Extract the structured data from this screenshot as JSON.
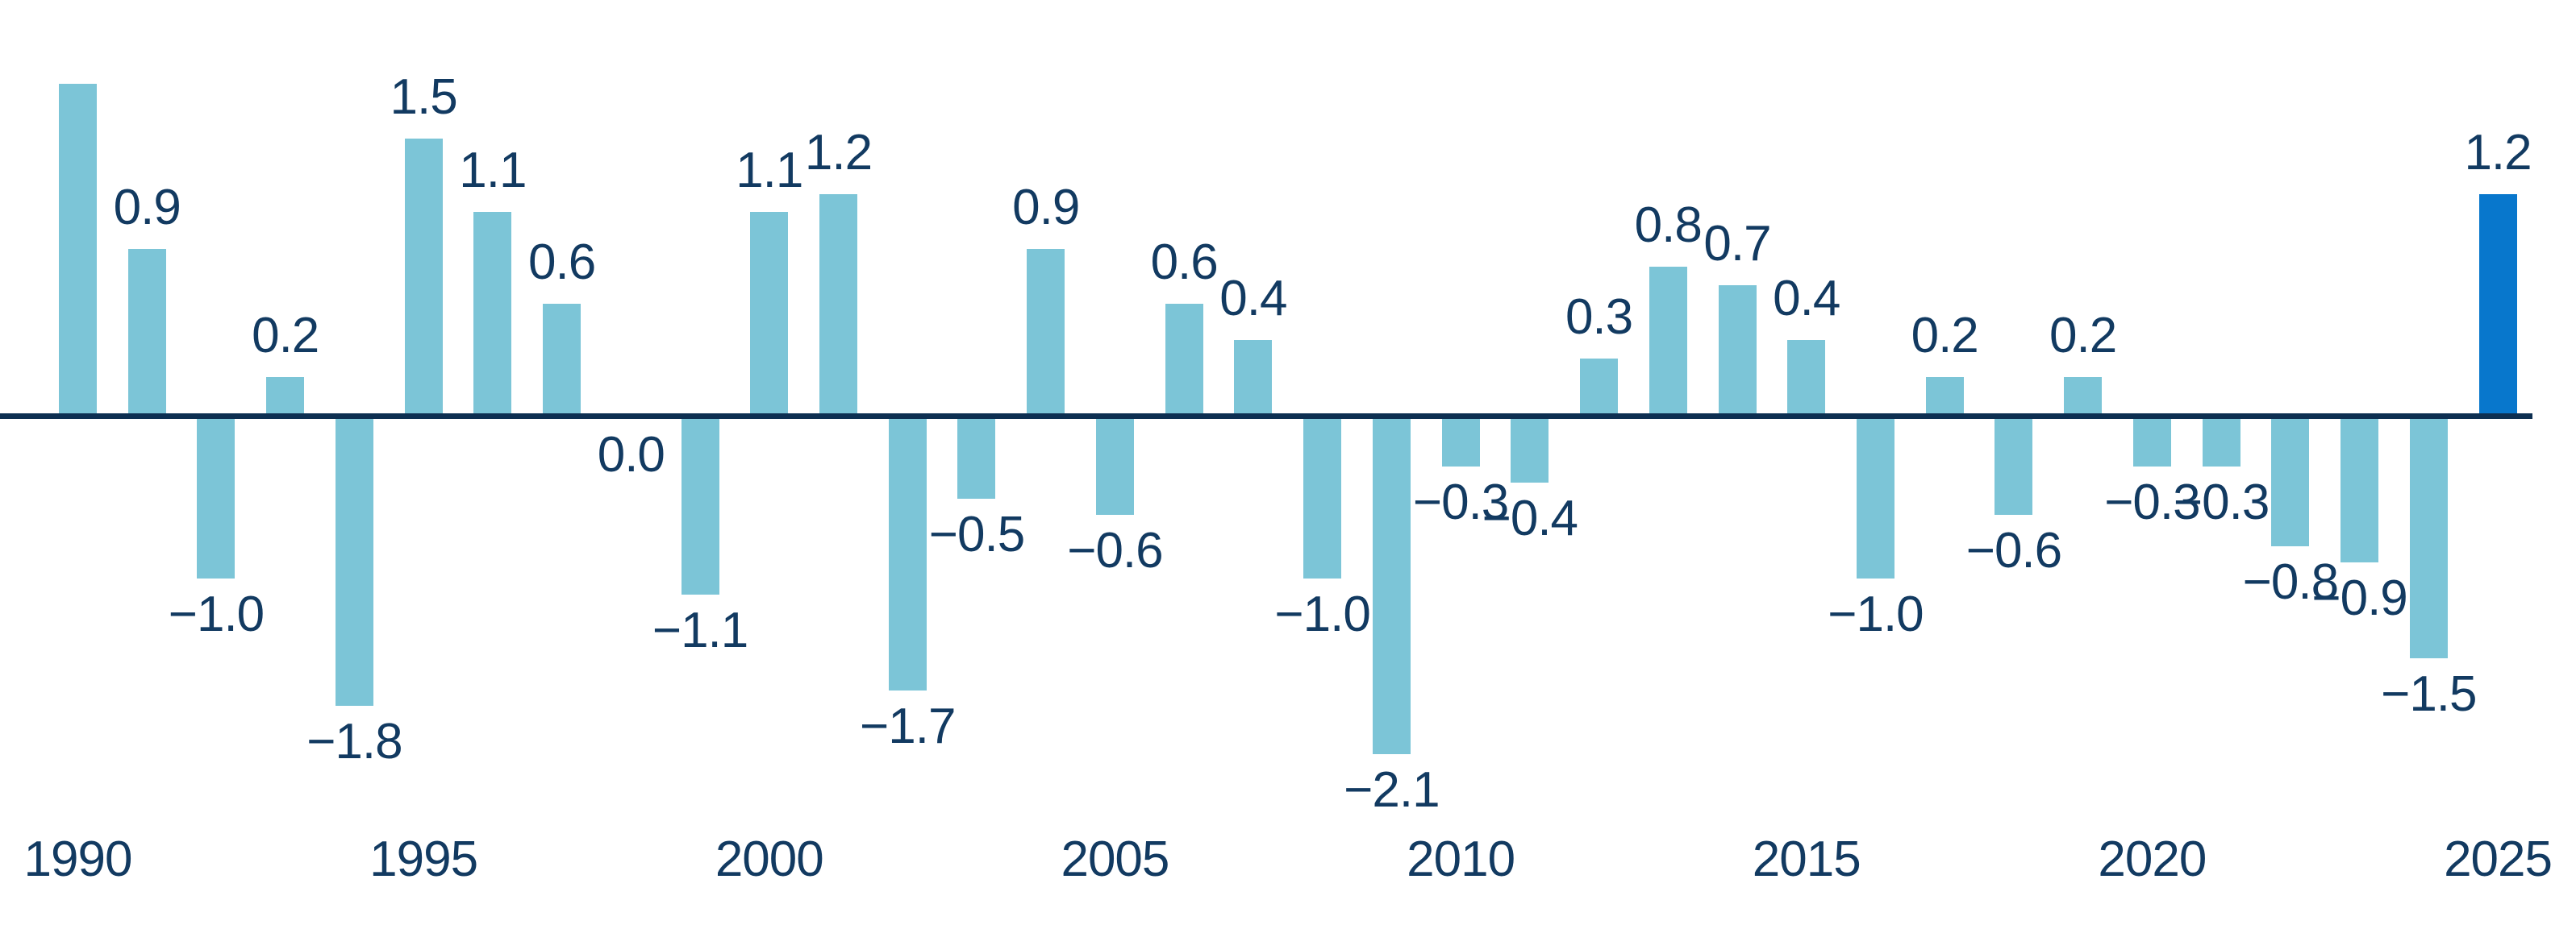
{
  "chart_data": {
    "type": "bar",
    "title": "",
    "xlabel": "",
    "ylabel": "",
    "x": [
      1990,
      1991,
      1992,
      1993,
      1994,
      1995,
      1996,
      1997,
      1998,
      1999,
      2000,
      2001,
      2002,
      2003,
      2004,
      2005,
      2006,
      2007,
      2008,
      2009,
      2010,
      2011,
      2012,
      2013,
      2014,
      2015,
      2016,
      2017,
      2018,
      2019,
      2020,
      2021,
      2022,
      2023,
      2024,
      2025
    ],
    "values": [
      1.8,
      0.9,
      -1.0,
      0.2,
      -1.8,
      1.5,
      1.1,
      0.6,
      0.0,
      -1.1,
      1.1,
      1.2,
      -1.7,
      -0.5,
      0.9,
      -0.6,
      0.6,
      0.4,
      -1.0,
      -2.1,
      -0.3,
      -0.4,
      0.3,
      0.8,
      0.7,
      0.4,
      -1.0,
      0.2,
      -0.6,
      0.2,
      -0.3,
      -0.3,
      -0.8,
      -0.9,
      -1.5,
      1.2
    ],
    "bar_labels": [
      "",
      "0.9",
      "−1.0",
      "0.2",
      "−1.8",
      "1.5",
      "1.1",
      "0.6",
      "0.0",
      "−1.1",
      "1.1",
      "1.2",
      "−1.7",
      "−0.5",
      "0.9",
      "−0.6",
      "0.6",
      "0.4",
      "−1.0",
      "−2.1",
      "−0.3",
      "−0.4",
      "0.3",
      "0.8",
      "0.7",
      "0.4",
      "−1.0",
      "0.2",
      "−0.6",
      "0.2",
      "−0.3",
      "−0.3",
      "−0.8",
      "−0.9",
      "−1.5",
      "1.2"
    ],
    "x_tick_labels": [
      "1990",
      "1995",
      "2000",
      "2005",
      "2010",
      "2015",
      "2020",
      "2025"
    ],
    "highlight_x": 2025,
    "ylim": [
      -2.6,
      2.0
    ],
    "grid": false,
    "legend": null,
    "colors": {
      "bar": "#7cc5d7",
      "highlight_bar": "#0877cc",
      "label_text": "#123a61",
      "axis_line": "#0d2f51"
    }
  }
}
